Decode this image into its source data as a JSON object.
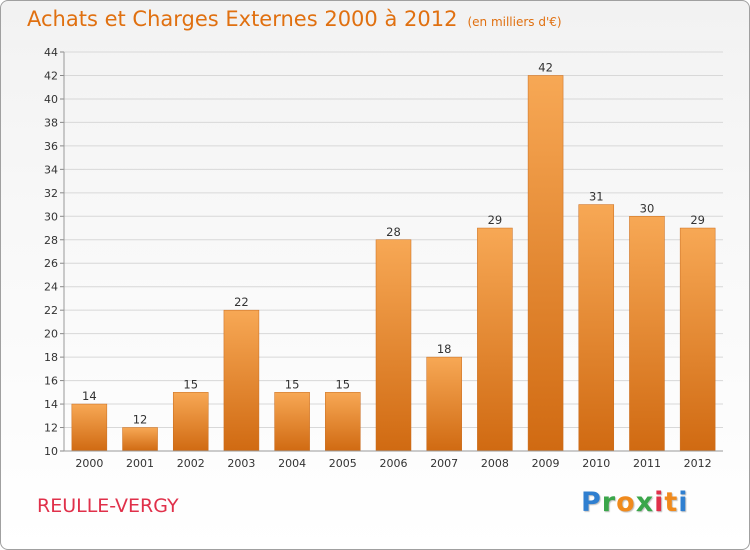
{
  "chart_data": {
    "type": "bar",
    "title": "Achats et Charges Externes 2000 à 2012",
    "subtitle": "(en milliers d'€)",
    "categories": [
      "2000",
      "2001",
      "2002",
      "2003",
      "2004",
      "2005",
      "2006",
      "2007",
      "2008",
      "2009",
      "2010",
      "2011",
      "2012"
    ],
    "values": [
      14,
      12,
      15,
      22,
      15,
      15,
      28,
      18,
      29,
      42,
      31,
      30,
      29
    ],
    "ylim": [
      10,
      44
    ],
    "yticks": [
      "10",
      "12",
      "14",
      "16",
      "18",
      "20",
      "22",
      "24",
      "26",
      "28",
      "30",
      "32",
      "34",
      "36",
      "38",
      "40",
      "42",
      "44"
    ],
    "grid": true,
    "legend": "none",
    "bar_color_top": "#f7a855",
    "bar_color_bottom": "#d06a12"
  },
  "commune": "REULLE-VERGY",
  "logo": {
    "letters": [
      "P",
      "r",
      "o",
      "x",
      "i",
      "t",
      "i"
    ]
  }
}
